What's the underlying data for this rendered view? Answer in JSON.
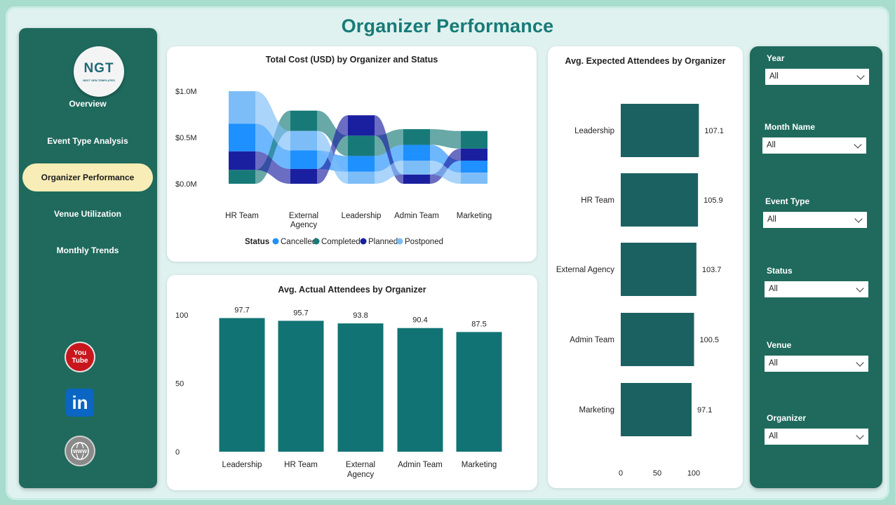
{
  "page": {
    "title": "Organizer Performance"
  },
  "logo": {
    "main": "NGT",
    "sub": "NEXT GEN TEMPLATES"
  },
  "nav": {
    "items": [
      {
        "label": "Overview"
      },
      {
        "label": "Event Type Analysis"
      },
      {
        "label": "Organizer Performance"
      },
      {
        "label": "Venue Utilization"
      },
      {
        "label": "Monthly Trends"
      }
    ]
  },
  "social": {
    "youtube_top": "You",
    "youtube_bottom": "Tube",
    "linkedin": "in",
    "web": "WWW"
  },
  "colors": {
    "accent_dark": "#1f6a5d",
    "bar_teal": "#127374",
    "bar_dark_teal": "#1c6161",
    "cancelled": "#1e90ff",
    "completed": "#177a78",
    "planned": "#1a1fa0",
    "postponed": "#7dbdf7",
    "title": "#177a78",
    "active_nav": "#f8edb6"
  },
  "cost_chart": {
    "title": "Total Cost (USD) by Organizer and Status",
    "legend_title": "Status",
    "chart_data": {
      "type": "area",
      "title": "Total Cost (USD) by Organizer and Status",
      "categories": [
        "HR Team",
        "External Agency",
        "Leadership",
        "Admin Team",
        "Marketing"
      ],
      "category_labels": [
        [
          "HR Team"
        ],
        [
          "External",
          "Agency"
        ],
        [
          "Leadership"
        ],
        [
          "Admin Team"
        ],
        [
          "Marketing"
        ]
      ],
      "y_ticks": [
        "$0.0M",
        "$0.5M",
        "$1.0M"
      ],
      "ylim": [
        0,
        1.0
      ],
      "series": [
        {
          "name": "Cancelled",
          "values": [
            0.3,
            0.2,
            0.17,
            0.17,
            0.13
          ]
        },
        {
          "name": "Completed",
          "values": [
            0.15,
            0.22,
            0.22,
            0.17,
            0.19
          ]
        },
        {
          "name": "Planned",
          "values": [
            0.2,
            0.16,
            0.22,
            0.1,
            0.13
          ]
        },
        {
          "name": "Postponed",
          "values": [
            0.35,
            0.21,
            0.13,
            0.15,
            0.12
          ]
        }
      ],
      "legend": "bottom"
    }
  },
  "actual_chart": {
    "title": "Avg. Actual Attendees by Organizer",
    "chart_data": {
      "type": "bar",
      "title": "Avg. Actual Attendees by Organizer",
      "categories": [
        "Leadership",
        "HR Team",
        "External Agency",
        "Admin Team",
        "Marketing"
      ],
      "category_labels": [
        [
          "Leadership"
        ],
        [
          "HR Team"
        ],
        [
          "External",
          "Agency"
        ],
        [
          "Admin Team"
        ],
        [
          "Marketing"
        ]
      ],
      "values": [
        97.7,
        95.7,
        93.8,
        90.4,
        87.5
      ],
      "value_labels": [
        "97.7",
        "95.7",
        "93.8",
        "90.4",
        "87.5"
      ],
      "y_ticks": [
        0,
        50,
        100
      ],
      "ylim": [
        0,
        100
      ]
    }
  },
  "expected_chart": {
    "title": "Avg. Expected Attendees by Organizer",
    "chart_data": {
      "type": "bar",
      "orientation": "horizontal",
      "title": "Avg. Expected Attendees by Organizer",
      "categories": [
        "Leadership",
        "HR Team",
        "External Agency",
        "Admin Team",
        "Marketing"
      ],
      "values": [
        107.1,
        105.9,
        103.7,
        100.5,
        97.1
      ],
      "value_labels": [
        "107.1",
        "105.9",
        "103.7",
        "100.5",
        "97.1"
      ],
      "x_ticks": [
        0,
        50,
        100
      ],
      "xlim": [
        0,
        100
      ]
    }
  },
  "filters": {
    "items": [
      {
        "label": "Year",
        "value": "All"
      },
      {
        "label": "Month Name",
        "value": "All"
      },
      {
        "label": "Event Type",
        "value": "All"
      },
      {
        "label": "Status",
        "value": "All"
      },
      {
        "label": "Venue",
        "value": "All"
      },
      {
        "label": "Organizer",
        "value": "All"
      }
    ]
  }
}
